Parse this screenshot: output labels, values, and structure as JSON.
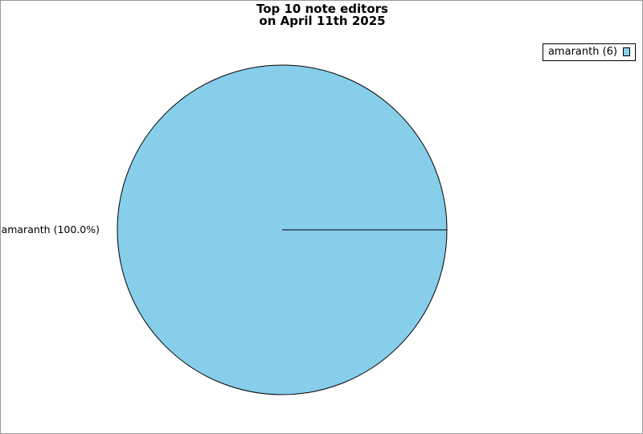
{
  "chart_data": {
    "type": "pie",
    "title": "Top 10 note editors",
    "subtitle": "on April 11th 2025",
    "slices": [
      {
        "name": "amaranth",
        "value": 6,
        "percent": 100.0,
        "label": "amaranth (100.0%)",
        "legend": "amaranth (6)",
        "color": "#87ceeb"
      }
    ],
    "legend_placement": "top-right"
  }
}
